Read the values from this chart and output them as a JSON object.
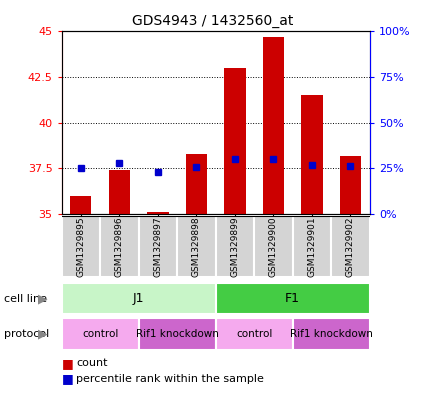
{
  "title": "GDS4943 / 1432560_at",
  "samples": [
    "GSM1329895",
    "GSM1329896",
    "GSM1329897",
    "GSM1329898",
    "GSM1329899",
    "GSM1329900",
    "GSM1329901",
    "GSM1329902"
  ],
  "counts": [
    36.0,
    37.4,
    35.1,
    38.3,
    43.0,
    44.7,
    41.5,
    38.2
  ],
  "percentiles": [
    25.0,
    28.0,
    23.0,
    26.0,
    30.0,
    30.0,
    27.0,
    26.5
  ],
  "y_min": 35,
  "y_max": 45,
  "y_ticks_left": [
    35,
    37.5,
    40,
    42.5,
    45
  ],
  "y_ticks_right": [
    0,
    25,
    50,
    75,
    100
  ],
  "bar_color": "#cc0000",
  "dot_color": "#0000cc",
  "bar_width": 0.55,
  "cell_line_groups": [
    {
      "label": "J1",
      "start": 0,
      "end": 4,
      "color": "#c8f5c8"
    },
    {
      "label": "F1",
      "start": 4,
      "end": 8,
      "color": "#44cc44"
    }
  ],
  "protocol_groups": [
    {
      "label": "control",
      "start": 0,
      "end": 2,
      "color": "#f5aaee"
    },
    {
      "label": "Rif1 knockdown",
      "start": 2,
      "end": 4,
      "color": "#cc66cc"
    },
    {
      "label": "control",
      "start": 4,
      "end": 6,
      "color": "#f5aaee"
    },
    {
      "label": "Rif1 knockdown",
      "start": 6,
      "end": 8,
      "color": "#cc66cc"
    }
  ],
  "legend_count_label": "count",
  "legend_pct_label": "percentile rank within the sample",
  "cell_line_label": "cell line",
  "protocol_label": "protocol"
}
